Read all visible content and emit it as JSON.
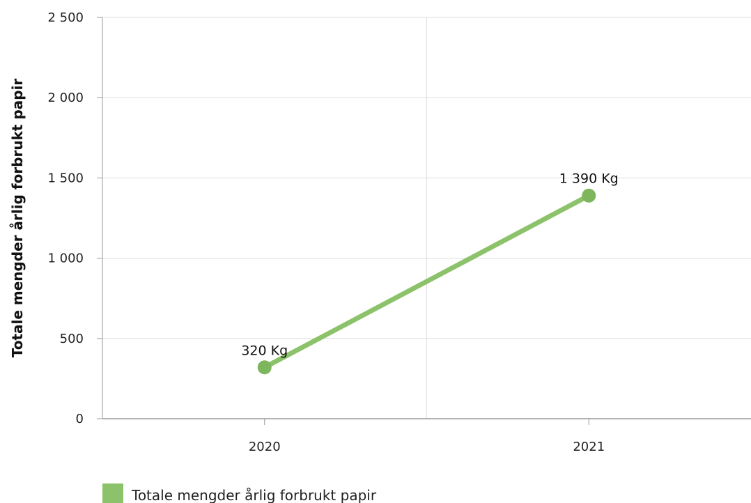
{
  "chart_data": {
    "type": "line",
    "categories": [
      "2020",
      "2021"
    ],
    "series": [
      {
        "name": "Totale mengder årlig forbrukt papir",
        "values": [
          320,
          1390
        ],
        "labels": [
          "320 Kg",
          "1 390 Kg"
        ],
        "color": "#8cc26a"
      }
    ],
    "ylabel": "Totale mengder årlig forbrukt papir",
    "ylim": [
      0,
      2500
    ],
    "yticks": [
      0,
      500,
      1000,
      1500,
      2000,
      2500
    ],
    "ytick_labels": [
      "0",
      "500",
      "1 000",
      "1 500",
      "2 000",
      "2 500"
    ],
    "grid": true,
    "legend_position": "bottom-left"
  },
  "colors": {
    "series": "#8cc26a",
    "marker": "#7db65c",
    "grid": "#dddddd",
    "axis": "#999999"
  }
}
